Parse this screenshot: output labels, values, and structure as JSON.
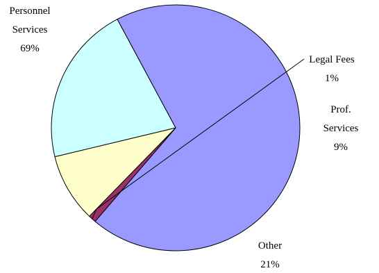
{
  "chart_data": {
    "type": "pie",
    "title": "",
    "slices": [
      {
        "label_lines": [
          "Personnel",
          "Services"
        ],
        "percent_text": "69%",
        "value": 69,
        "color": "#9999ff"
      },
      {
        "label_lines": [
          "Legal Fees"
        ],
        "percent_text": "1%",
        "value": 1,
        "color": "#993366"
      },
      {
        "label_lines": [
          "Prof.",
          "Services"
        ],
        "percent_text": "9%",
        "value": 9,
        "color": "#ffffcc"
      },
      {
        "label_lines": [
          "Other"
        ],
        "percent_text": "21%",
        "value": 21,
        "color": "#ccffff"
      }
    ],
    "legend": "none",
    "leader_line_on": "Legal Fees"
  }
}
